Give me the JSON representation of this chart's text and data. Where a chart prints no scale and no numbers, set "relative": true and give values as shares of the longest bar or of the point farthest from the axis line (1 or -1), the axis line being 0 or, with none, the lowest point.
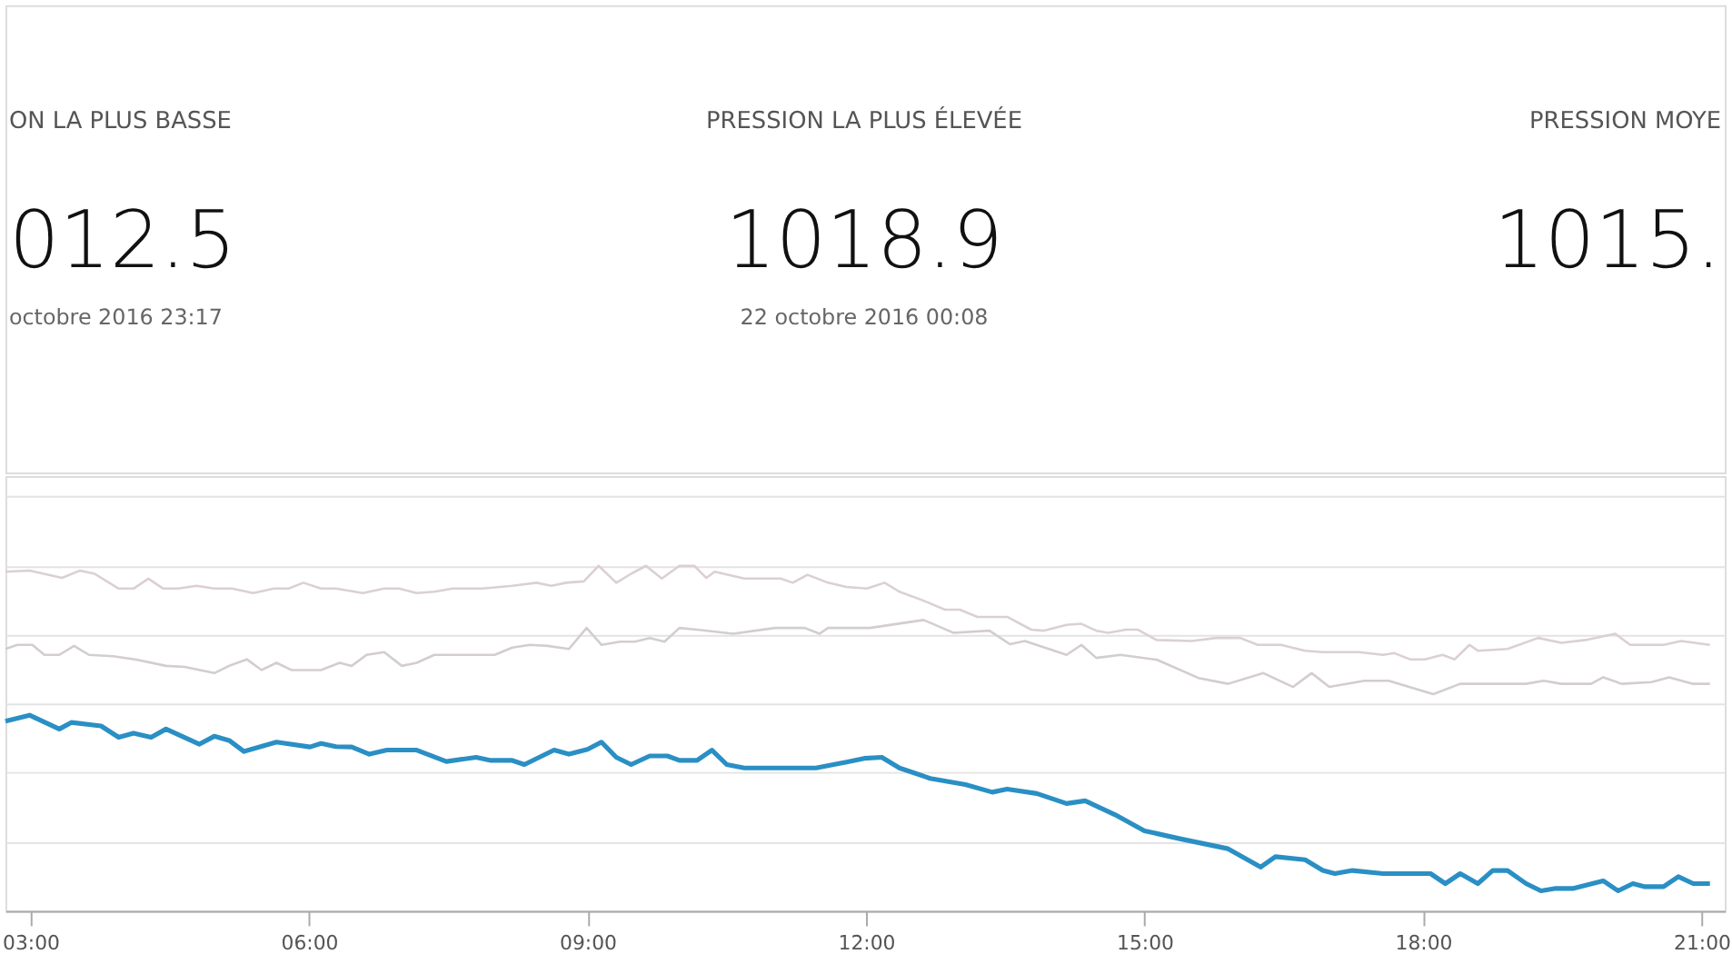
{
  "chart_data": {
    "type": "line",
    "relative": true,
    "grid": "y",
    "marker": "none",
    "line_style": "solid",
    "annotations": [
      "ON LA PLUS BASSE",
      "012.5",
      "octobre 2016 23:17",
      "PRESSION LA PLUS ÉLEVÉE",
      "1018.9",
      "22 octobre 2016 00:08",
      "PRESSION MOYE",
      "1015."
    ],
    "xlim": [
      2.73,
      21.25
    ],
    "xticks": [
      {
        "value": 3,
        "label": "03:00"
      },
      {
        "value": 6,
        "label": "06:00"
      },
      {
        "value": 9,
        "label": "09:00"
      },
      {
        "value": 12,
        "label": "12:00"
      },
      {
        "value": 15,
        "label": "15:00"
      },
      {
        "value": 18,
        "label": "18:00"
      },
      {
        "value": 21,
        "label": "21:00"
      }
    ],
    "series": [
      {
        "color": "#dccfd4",
        "x": [
          2.73,
          2.99,
          3.34,
          3.53,
          3.69,
          3.95,
          4.11,
          4.27,
          4.43,
          4.59,
          4.79,
          4.98,
          5.17,
          5.4,
          5.62,
          5.78,
          5.94,
          6.13,
          6.29,
          6.58,
          6.81,
          6.97,
          7.16,
          7.35,
          7.55,
          7.87,
          8.19,
          8.45,
          8.61,
          8.77,
          8.96,
          9.12,
          9.31,
          9.47,
          9.63,
          9.8,
          9.99,
          10.15,
          10.28,
          10.37,
          10.69,
          11.08,
          11.21,
          11.37,
          11.59,
          11.79,
          12.01,
          12.2,
          12.36,
          12.62,
          12.85,
          13.01,
          13.2,
          13.52,
          13.78,
          13.91,
          14.16,
          14.32,
          14.48,
          14.61,
          14.8,
          14.93,
          15.13,
          15.51,
          15.77,
          16.03,
          16.22,
          16.47,
          16.73,
          16.92,
          17.31,
          17.57,
          17.69,
          17.86,
          18.02,
          18.21,
          18.34,
          18.5,
          18.59,
          18.91,
          19.24,
          19.49,
          19.75,
          20.07,
          20.23,
          20.59,
          20.78,
          21.09
        ],
        "values": [
          0.983,
          0.986,
          0.965,
          0.986,
          0.977,
          0.934,
          0.934,
          0.963,
          0.934,
          0.934,
          0.942,
          0.934,
          0.934,
          0.921,
          0.934,
          0.934,
          0.951,
          0.934,
          0.934,
          0.921,
          0.934,
          0.934,
          0.921,
          0.925,
          0.934,
          0.934,
          0.942,
          0.951,
          0.942,
          0.951,
          0.955,
          1.0,
          0.951,
          0.977,
          1.0,
          0.963,
          1.0,
          1.0,
          0.965,
          0.983,
          0.963,
          0.963,
          0.951,
          0.974,
          0.951,
          0.939,
          0.934,
          0.951,
          0.925,
          0.899,
          0.873,
          0.873,
          0.852,
          0.852,
          0.815,
          0.812,
          0.829,
          0.832,
          0.812,
          0.806,
          0.815,
          0.815,
          0.785,
          0.782,
          0.791,
          0.791,
          0.771,
          0.771,
          0.754,
          0.75,
          0.75,
          0.742,
          0.747,
          0.729,
          0.729,
          0.742,
          0.729,
          0.771,
          0.754,
          0.759,
          0.791,
          0.777,
          0.785,
          0.803,
          0.771,
          0.771,
          0.782,
          0.771
        ]
      },
      {
        "color": "#d3cdcf",
        "x": [
          2.73,
          2.86,
          3.02,
          3.15,
          3.31,
          3.47,
          3.63,
          3.89,
          4.14,
          4.46,
          4.66,
          4.98,
          5.14,
          5.33,
          5.49,
          5.65,
          5.81,
          6.13,
          6.33,
          6.46,
          6.62,
          6.81,
          7.0,
          7.16,
          7.35,
          8.0,
          8.19,
          8.38,
          8.57,
          8.8,
          8.99,
          9.15,
          9.35,
          9.51,
          9.67,
          9.83,
          9.99,
          10.18,
          10.57,
          11.02,
          11.34,
          11.5,
          11.59,
          11.79,
          12.04,
          12.62,
          12.94,
          13.33,
          13.55,
          13.71,
          13.97,
          14.16,
          14.32,
          14.48,
          14.74,
          15.13,
          15.58,
          15.9,
          16.28,
          16.6,
          16.8,
          16.99,
          17.37,
          17.63,
          17.89,
          18.11,
          18.4,
          19.11,
          19.3,
          19.49,
          19.81,
          19.94,
          20.14,
          20.46,
          20.65,
          20.91,
          21.09
        ],
        "values": [
          0.759,
          0.771,
          0.771,
          0.742,
          0.742,
          0.768,
          0.742,
          0.738,
          0.728,
          0.71,
          0.707,
          0.689,
          0.71,
          0.729,
          0.698,
          0.719,
          0.698,
          0.698,
          0.719,
          0.71,
          0.742,
          0.75,
          0.71,
          0.719,
          0.742,
          0.742,
          0.763,
          0.771,
          0.768,
          0.759,
          0.82,
          0.771,
          0.78,
          0.78,
          0.791,
          0.78,
          0.82,
          0.815,
          0.803,
          0.82,
          0.82,
          0.803,
          0.82,
          0.82,
          0.82,
          0.843,
          0.806,
          0.812,
          0.773,
          0.782,
          0.759,
          0.742,
          0.771,
          0.733,
          0.742,
          0.728,
          0.675,
          0.658,
          0.689,
          0.649,
          0.689,
          0.649,
          0.667,
          0.667,
          0.646,
          0.628,
          0.658,
          0.658,
          0.667,
          0.658,
          0.658,
          0.677,
          0.658,
          0.663,
          0.677,
          0.658,
          0.658
        ]
      },
      {
        "color": "#2a8fc4",
        "x": [
          2.73,
          2.99,
          3.31,
          3.44,
          3.76,
          3.95,
          4.11,
          4.3,
          4.46,
          4.82,
          4.98,
          5.14,
          5.3,
          5.65,
          6.01,
          6.13,
          6.29,
          6.46,
          6.65,
          6.84,
          7.16,
          7.48,
          7.8,
          7.96,
          8.19,
          8.32,
          8.64,
          8.8,
          9.0,
          9.15,
          9.31,
          9.47,
          9.67,
          9.86,
          9.99,
          10.18,
          10.34,
          10.5,
          10.69,
          11.46,
          11.79,
          11.98,
          12.17,
          12.36,
          12.69,
          13.07,
          13.36,
          13.52,
          13.84,
          14.16,
          14.36,
          14.68,
          15.0,
          15.38,
          15.9,
          16.25,
          16.41,
          16.73,
          16.92,
          17.05,
          17.24,
          17.57,
          18.08,
          18.24,
          18.4,
          18.59,
          18.75,
          18.91,
          19.11,
          19.27,
          19.43,
          19.62,
          19.94,
          20.1,
          20.26,
          20.39,
          20.59,
          20.75,
          20.91,
          21.09
        ],
        "values": [
          0.55,
          0.567,
          0.527,
          0.546,
          0.536,
          0.503,
          0.515,
          0.503,
          0.527,
          0.483,
          0.506,
          0.494,
          0.462,
          0.489,
          0.475,
          0.485,
          0.476,
          0.475,
          0.454,
          0.466,
          0.466,
          0.433,
          0.445,
          0.436,
          0.436,
          0.424,
          0.466,
          0.454,
          0.468,
          0.489,
          0.445,
          0.424,
          0.449,
          0.449,
          0.436,
          0.436,
          0.466,
          0.424,
          0.414,
          0.414,
          0.431,
          0.442,
          0.445,
          0.414,
          0.384,
          0.366,
          0.344,
          0.353,
          0.34,
          0.311,
          0.319,
          0.279,
          0.232,
          0.209,
          0.18,
          0.127,
          0.157,
          0.148,
          0.117,
          0.108,
          0.117,
          0.108,
          0.108,
          0.079,
          0.108,
          0.079,
          0.117,
          0.117,
          0.079,
          0.058,
          0.065,
          0.065,
          0.087,
          0.058,
          0.079,
          0.07,
          0.07,
          0.099,
          0.079,
          0.079
        ]
      }
    ]
  }
}
